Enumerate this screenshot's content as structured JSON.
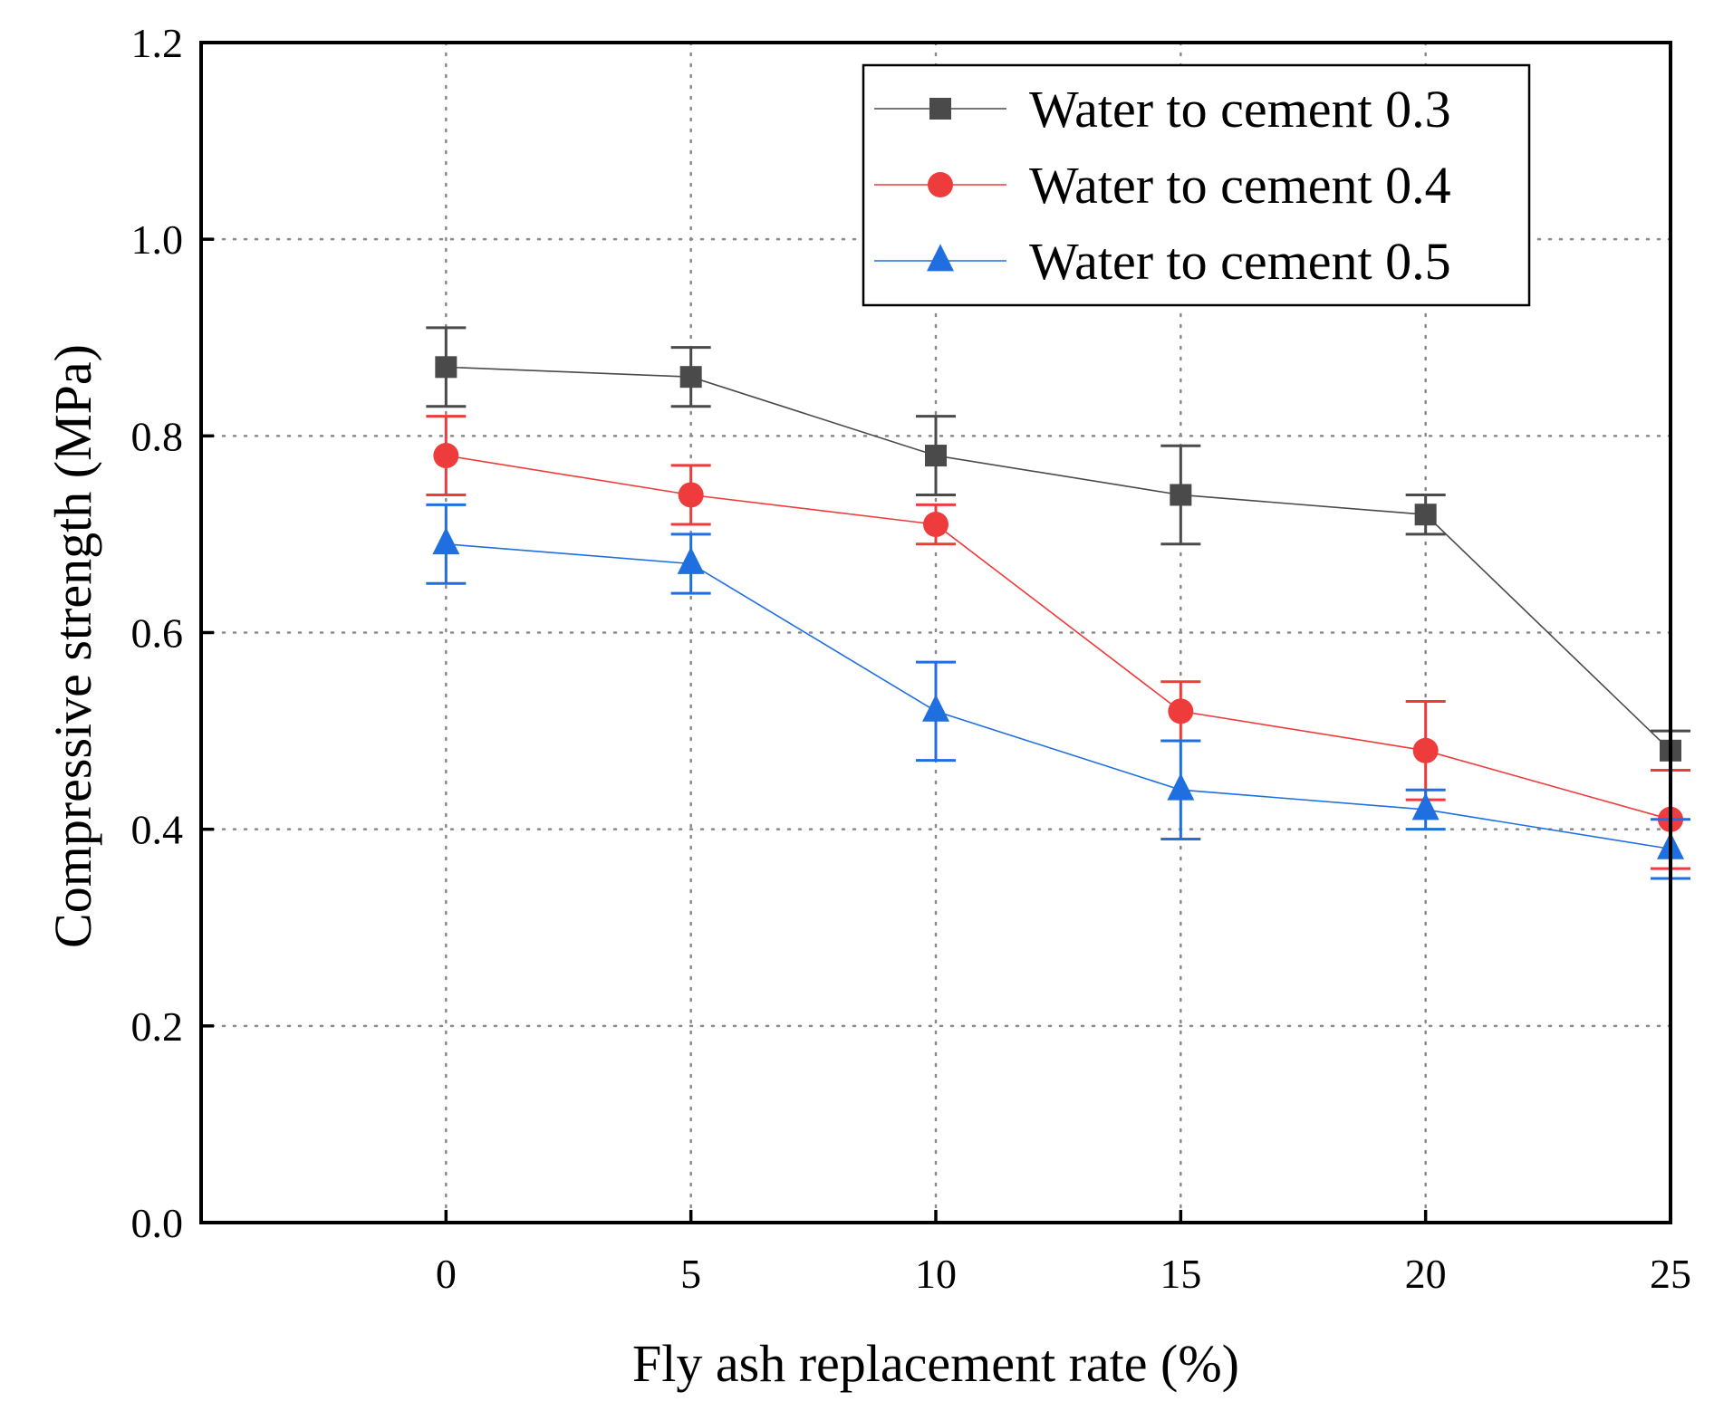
{
  "chart_data": {
    "type": "line",
    "xlabel": "Fly ash replacement rate (%)",
    "ylabel": "Compressive strength (MPa)",
    "xlim": [
      -5,
      25
    ],
    "ylim": [
      0,
      1.2
    ],
    "x": [
      0,
      5,
      10,
      15,
      20,
      25
    ],
    "xticks": [
      "0",
      "5",
      "10",
      "15",
      "20",
      "25"
    ],
    "yticks": [
      "0.0",
      "0.2",
      "0.4",
      "0.6",
      "0.8",
      "1.0",
      "1.2"
    ],
    "grid": true,
    "legend_position": "top-right",
    "series": [
      {
        "name": "Water to cement 0.3",
        "marker": "square",
        "color": "#4a4a4a",
        "values": [
          0.87,
          0.86,
          0.78,
          0.74,
          0.72,
          0.48
        ],
        "error_upper": [
          0.91,
          0.89,
          0.82,
          0.79,
          0.74,
          0.5
        ],
        "error_lower": [
          0.83,
          0.83,
          0.74,
          0.69,
          0.7,
          0.46
        ]
      },
      {
        "name": "Water to cement 0.4",
        "marker": "circle",
        "color": "#ee3b3b",
        "values": [
          0.78,
          0.74,
          0.71,
          0.52,
          0.48,
          0.41
        ],
        "error_upper": [
          0.82,
          0.77,
          0.73,
          0.55,
          0.53,
          0.46
        ],
        "error_lower": [
          0.74,
          0.71,
          0.69,
          0.49,
          0.43,
          0.36
        ]
      },
      {
        "name": "Water to cement 0.5",
        "marker": "triangle",
        "color": "#1f6fe0",
        "values": [
          0.69,
          0.67,
          0.52,
          0.44,
          0.42,
          0.38
        ],
        "error_upper": [
          0.73,
          0.7,
          0.57,
          0.49,
          0.44,
          0.41
        ],
        "error_lower": [
          0.65,
          0.64,
          0.47,
          0.39,
          0.4,
          0.35
        ]
      }
    ]
  }
}
